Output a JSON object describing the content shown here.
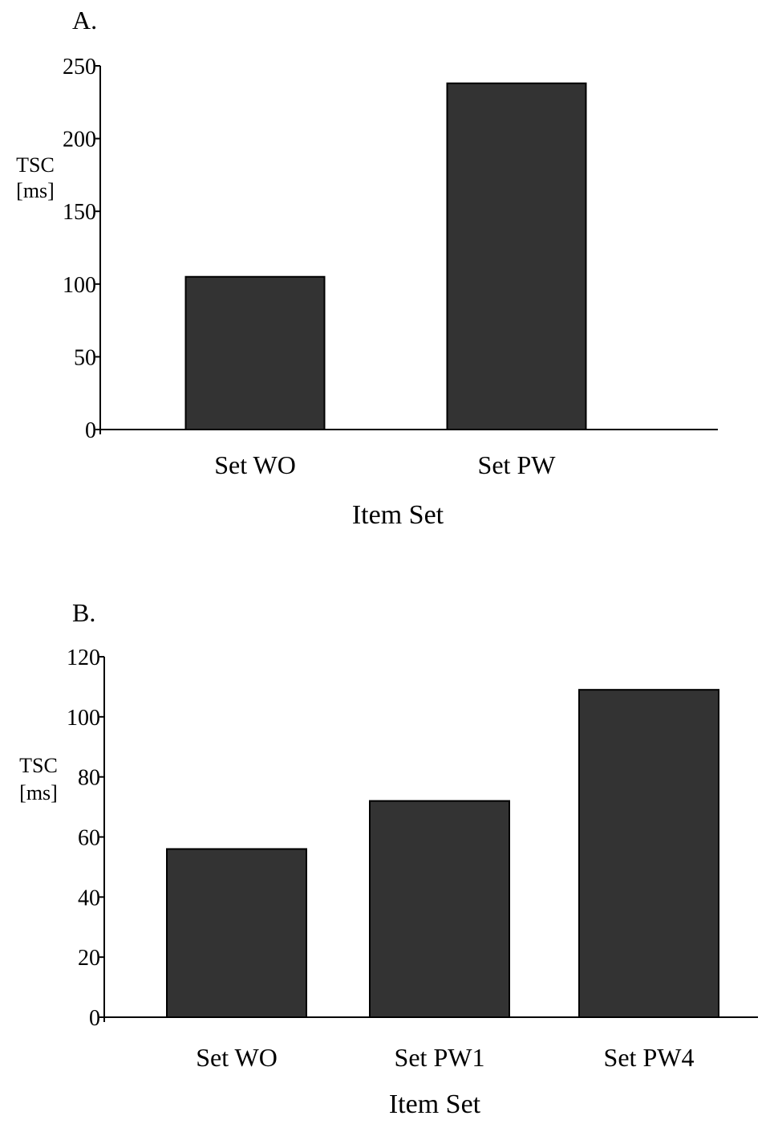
{
  "chart_data": [
    {
      "panel": "A.",
      "type": "bar",
      "categories": [
        "Set WO",
        "Set PW"
      ],
      "values": [
        105,
        238
      ],
      "xlabel": "Item Set",
      "ylabel": [
        "TSC",
        "[ms]"
      ],
      "ylim": [
        0,
        250
      ],
      "yticks": [
        0,
        50,
        100,
        150,
        200,
        250
      ],
      "grid": false,
      "legend": "none",
      "bar_color": "#333333"
    },
    {
      "panel": "B.",
      "type": "bar",
      "categories": [
        "Set WO",
        "Set PW1",
        "Set PW4"
      ],
      "values": [
        56,
        72,
        109
      ],
      "xlabel": "Item Set",
      "ylabel": [
        "TSC",
        "[ms]"
      ],
      "ylim": [
        0,
        120
      ],
      "yticks": [
        0,
        20,
        40,
        60,
        80,
        100,
        120
      ],
      "grid": false,
      "legend": "none",
      "bar_color": "#333333"
    }
  ]
}
